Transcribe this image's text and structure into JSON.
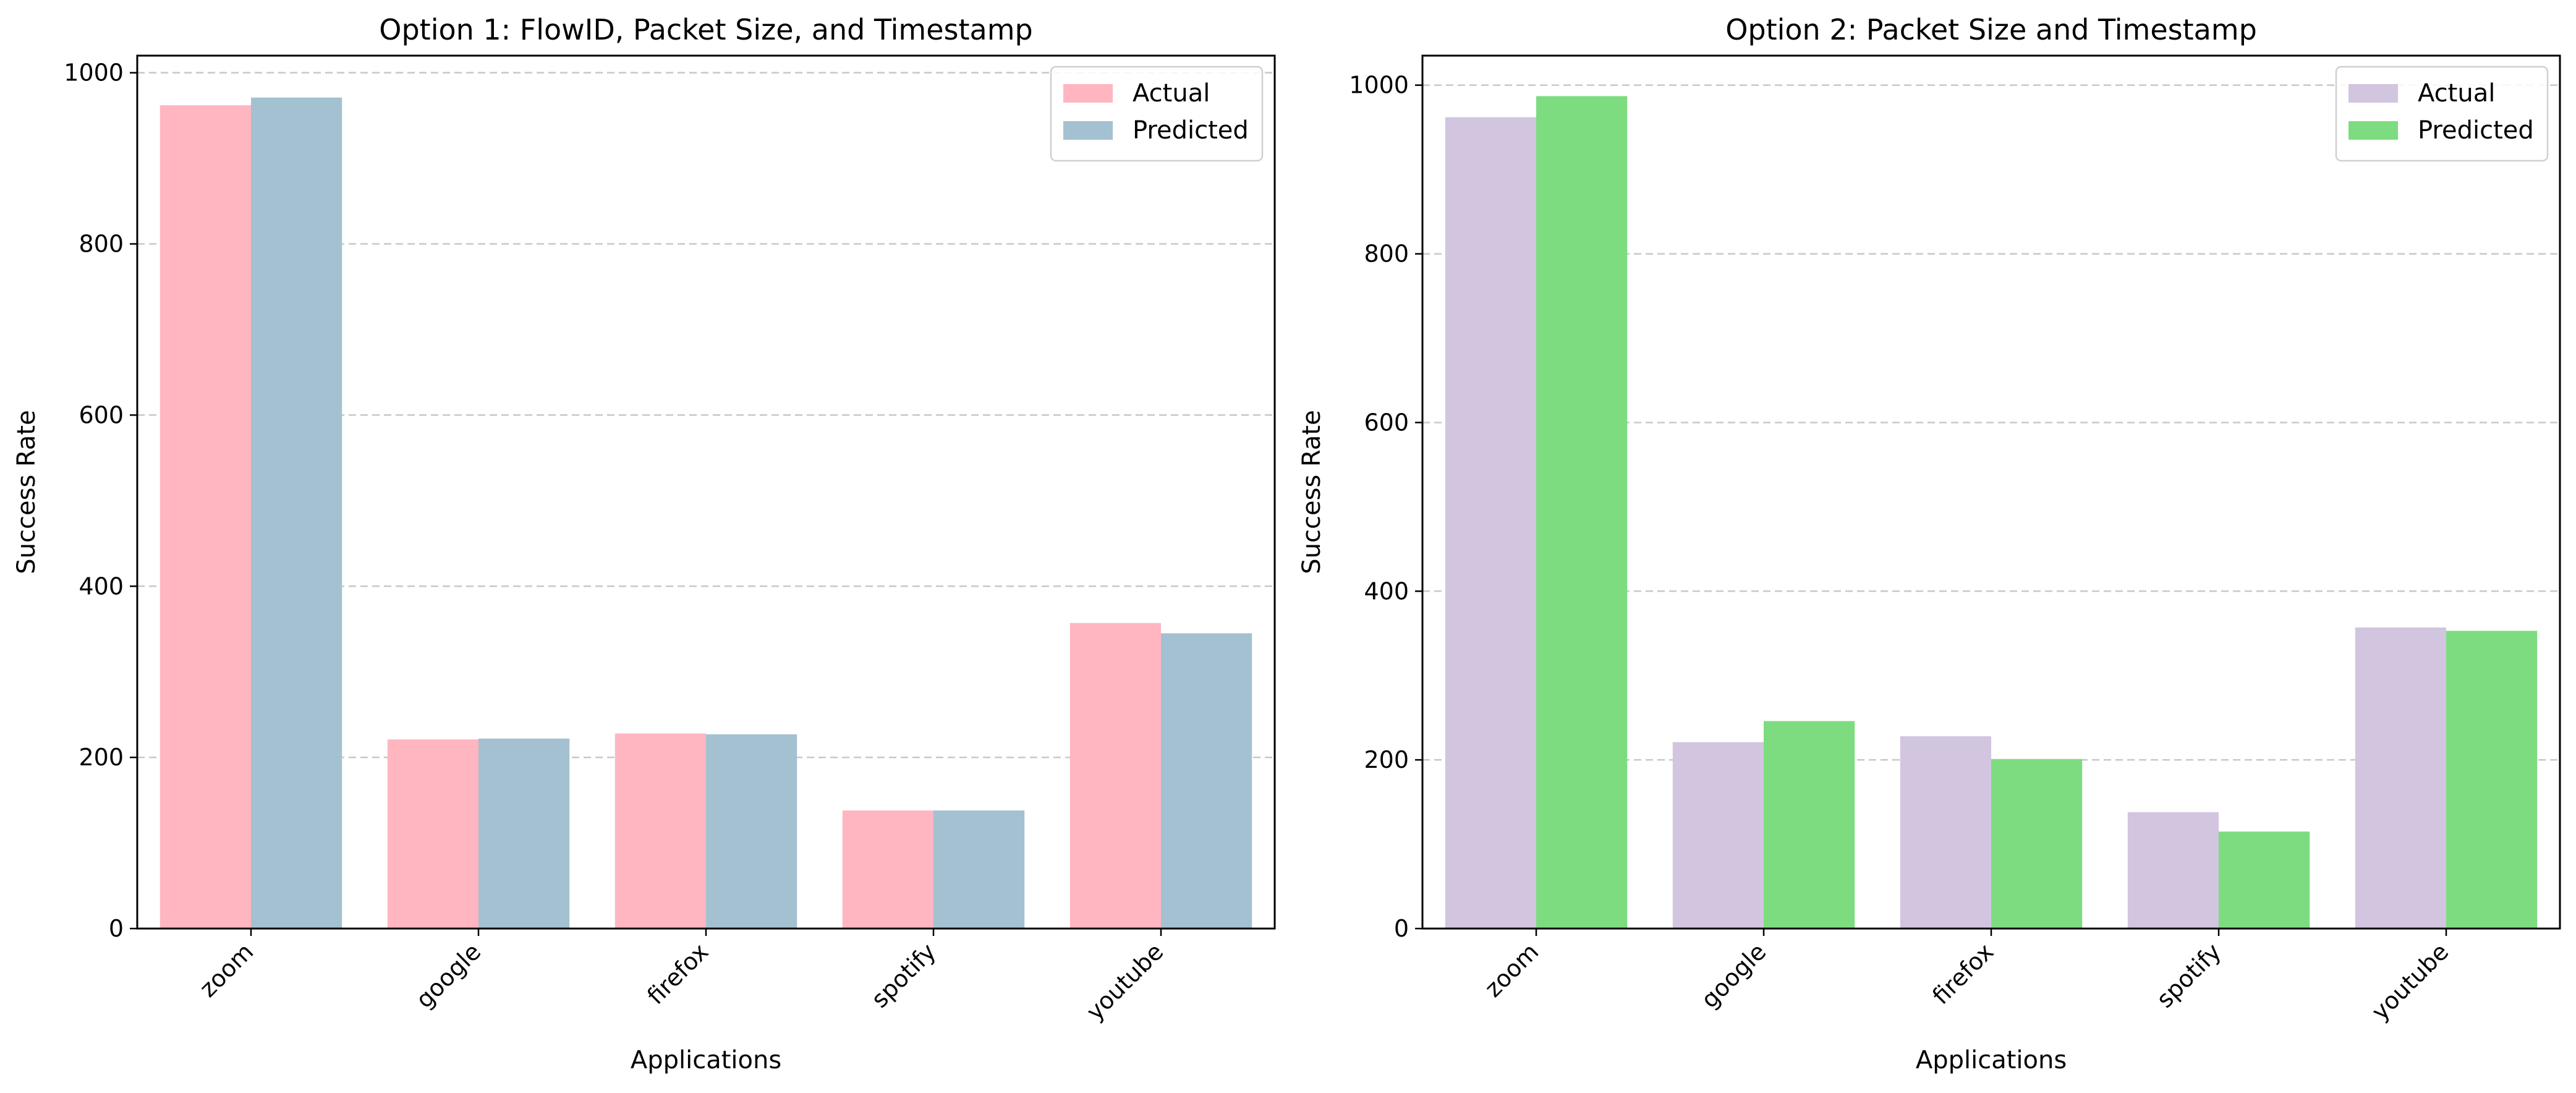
{
  "chart_data": [
    {
      "type": "bar",
      "title": "Option 1: FlowID, Packet Size, and Timestamp",
      "xlabel": "Applications",
      "ylabel": "Success Rate",
      "categories": [
        "zoom",
        "google",
        "firefox",
        "spotify",
        "youtube"
      ],
      "series": [
        {
          "name": "Actual",
          "color": "#ffb6c1",
          "values": [
            962,
            221,
            228,
            138,
            357
          ]
        },
        {
          "name": "Predicted",
          "color": "#a3c1d1",
          "values": [
            971,
            222,
            227,
            138,
            345
          ]
        }
      ],
      "ylim": [
        0,
        1020
      ],
      "yticks": [
        0,
        200,
        400,
        600,
        800,
        1000
      ],
      "grid": "y-dashed",
      "legend_position": "top-right"
    },
    {
      "type": "bar",
      "title": "Option 2: Packet Size and Timestamp",
      "xlabel": "Applications",
      "ylabel": "Success Rate",
      "categories": [
        "zoom",
        "google",
        "firefox",
        "spotify",
        "youtube"
      ],
      "series": [
        {
          "name": "Actual",
          "color": "#d1c5e0",
          "values": [
            962,
            221,
            228,
            138,
            357
          ]
        },
        {
          "name": "Predicted",
          "color": "#7ddc7f",
          "values": [
            987,
            246,
            201,
            115,
            353
          ]
        }
      ],
      "ylim": [
        0,
        1035
      ],
      "yticks": [
        0,
        200,
        400,
        600,
        800,
        1000
      ],
      "grid": "y-dashed",
      "legend_position": "top-right"
    }
  ]
}
